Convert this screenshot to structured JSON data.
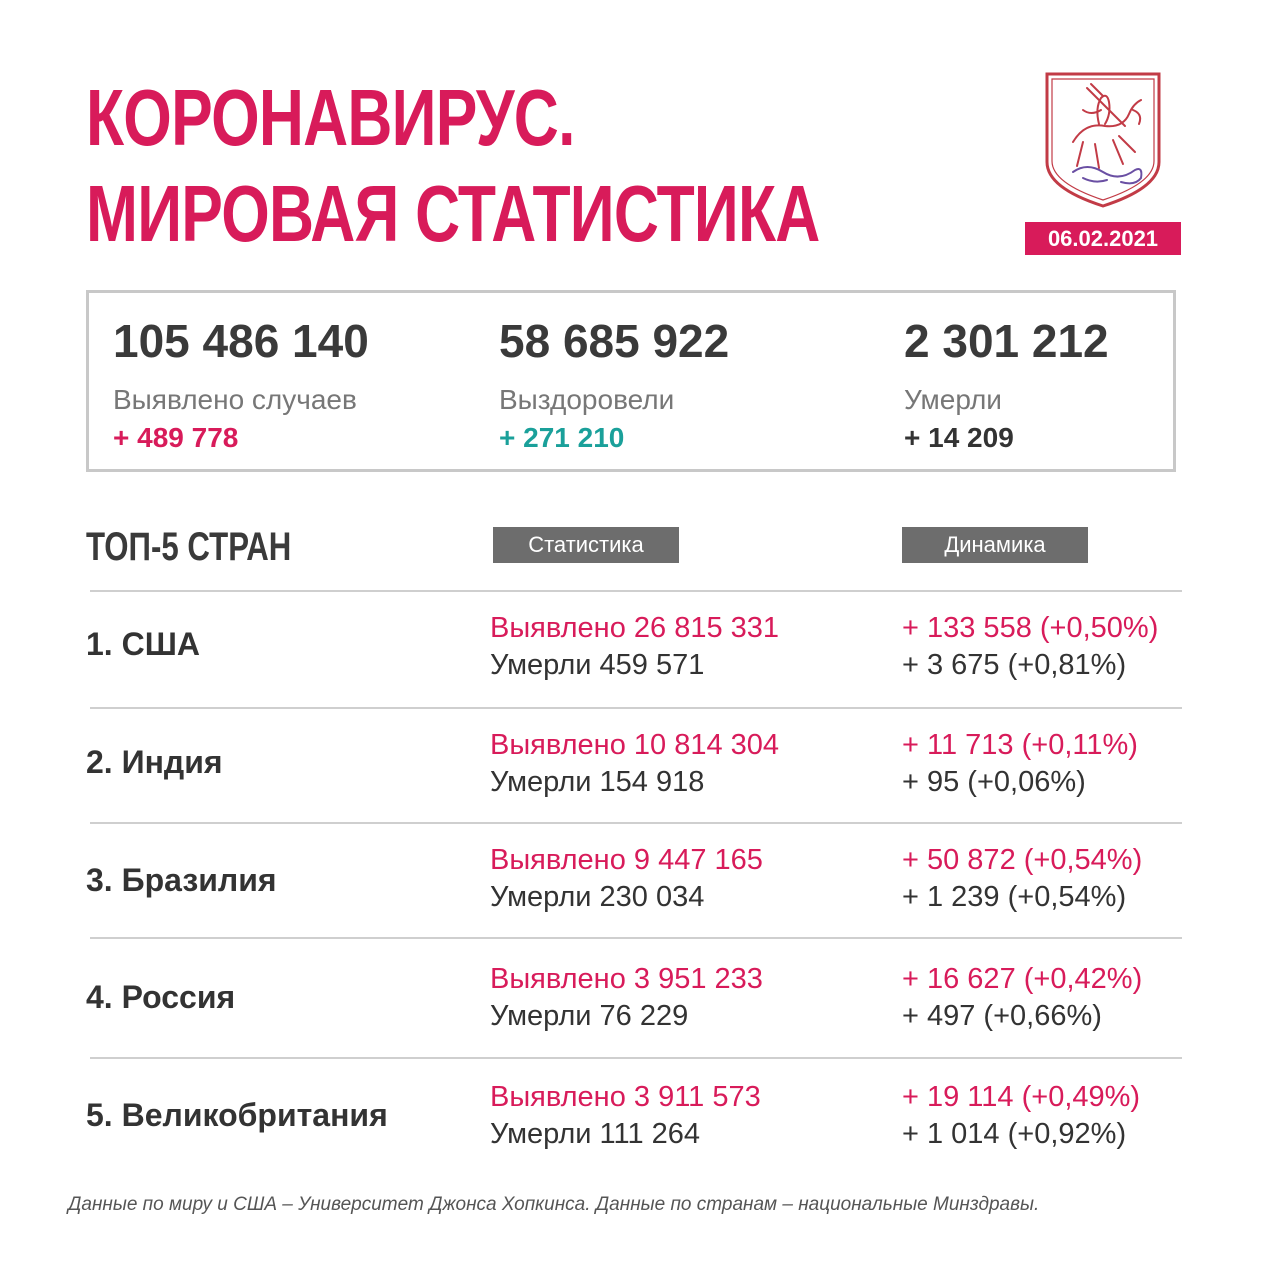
{
  "header": {
    "title_line1": "КОРОНАВИРУС.",
    "title_line2": "МИРОВАЯ СТАТИСТИКА",
    "date": "06.02.2021",
    "emblem": "moscow-coat-of-arms"
  },
  "summary": {
    "cases": {
      "value": "105 486 140",
      "label": "Выявлено случаев",
      "delta": "+ 489 778"
    },
    "recovered": {
      "value": "58 685 922",
      "label": "Выздоровели",
      "delta": "+ 271 210"
    },
    "deaths": {
      "value": "2 301 212",
      "label": "Умерли",
      "delta": "+ 14 209"
    }
  },
  "top5": {
    "title": "ТОП-5 СТРАН",
    "col_stats": "Статистика",
    "col_dynamics": "Динамика",
    "rows": [
      {
        "country": "1. США",
        "cases": "Выявлено 26 815 331",
        "deaths": "Умерли 459 571",
        "cases_delta": "+ 133 558 (+0,50%)",
        "deaths_delta": "+ 3 675 (+0,81%)"
      },
      {
        "country": "2. Индия",
        "cases": "Выявлено 10 814 304",
        "deaths": "Умерли 154 918",
        "cases_delta": "+ 11 713 (+0,11%)",
        "deaths_delta": "+ 95 (+0,06%)"
      },
      {
        "country": "3. Бразилия",
        "cases": "Выявлено 9 447 165",
        "deaths": "Умерли 230 034",
        "cases_delta": "+ 50 872 (+0,54%)",
        "deaths_delta": "+ 1 239 (+0,54%)"
      },
      {
        "country": "4. Россия",
        "cases": "Выявлено 3 951 233",
        "deaths": "Умерли 76 229",
        "cases_delta": "+ 16 627 (+0,42%)",
        "deaths_delta": "+ 497 (+0,66%)"
      },
      {
        "country": "5. Великобритания",
        "cases": "Выявлено 3 911 573",
        "deaths": "Умерли 111 264",
        "cases_delta": "+ 19 114 (+0,49%)",
        "deaths_delta": "+ 1 014 (+0,92%)"
      }
    ]
  },
  "footnote": "Данные по миру и США – Университет Джонса Хопкинса. Данные по странам – национальные Минздравы.",
  "colors": {
    "accent": "#d81b5a",
    "teal": "#1aa09a",
    "header_bg": "#6d6d6d"
  }
}
